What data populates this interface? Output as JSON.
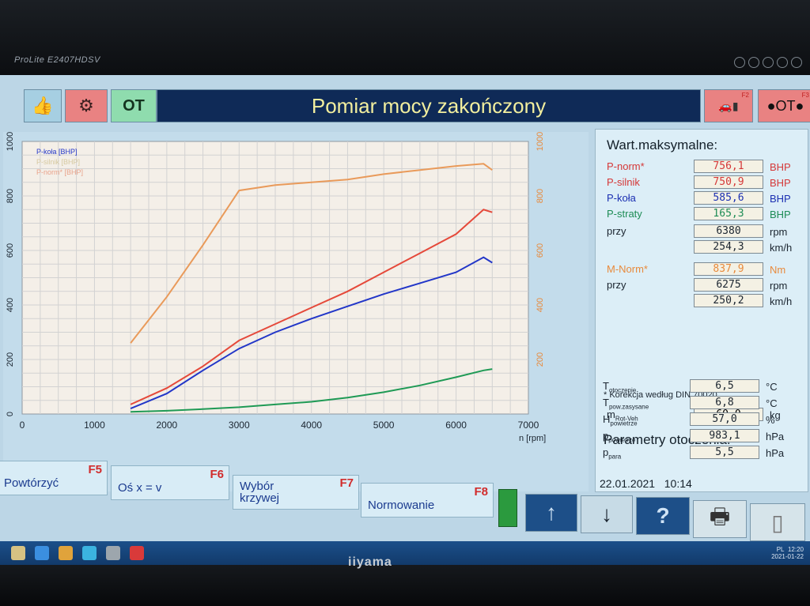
{
  "monitor": {
    "model": "ProLite E2407HDSV",
    "brand": "iiyama"
  },
  "topbar": {
    "thumb_icon": "thumbs-up-icon",
    "engine_icon": "engine-icon",
    "ot_label": "OT",
    "title": "Pomiar mocy zakończony",
    "f2_label": "F2",
    "f3_label": "F3",
    "f3_text": "●OT●"
  },
  "chart_data": {
    "type": "line",
    "x": [
      1500,
      2000,
      2500,
      3000,
      3500,
      4000,
      4500,
      5000,
      5500,
      6000,
      6380,
      6500
    ],
    "xlabel": "n [rpm]",
    "xlim": [
      0,
      7000
    ],
    "xticks": [
      "0",
      "1000",
      "2000",
      "3000",
      "4000",
      "5000",
      "6000",
      "7000"
    ],
    "left_axis": {
      "ylim": [
        0,
        1000
      ],
      "ticks": [
        "0",
        "200",
        "400",
        "600",
        "800",
        "1000"
      ]
    },
    "right_axis": {
      "ylim": [
        0,
        1000
      ],
      "ticks": [
        "200",
        "400",
        "600",
        "800",
        "1000"
      ]
    },
    "legend": [
      "P-koła [BHP]",
      "P-silnik [BHP]",
      "P-norm* [BHP]"
    ],
    "legend_position": "top-left",
    "grid": true,
    "series": [
      {
        "name": "P-koła [BHP]",
        "color": "#2236c8",
        "values": [
          20,
          75,
          160,
          240,
          300,
          350,
          395,
          440,
          480,
          520,
          575,
          555
        ]
      },
      {
        "name": "P-silnik [BHP]",
        "color": "#e5493a",
        "values": [
          35,
          95,
          175,
          270,
          330,
          390,
          450,
          520,
          590,
          660,
          750,
          740
        ]
      },
      {
        "name": "P-norm* [BHP]",
        "color": "#e99a5a",
        "values": [
          260,
          430,
          620,
          820,
          840,
          850,
          860,
          880,
          895,
          910,
          918,
          895
        ]
      },
      {
        "name": "P-straty [BHP]",
        "color": "#1f9a55",
        "values": [
          8,
          12,
          18,
          25,
          35,
          45,
          60,
          80,
          105,
          135,
          160,
          165
        ]
      }
    ]
  },
  "maxvals": {
    "heading": "Wart.maksymalne:",
    "rows": [
      {
        "label": "P-norm*",
        "value": "756,1",
        "unit": "BHP",
        "color": "red"
      },
      {
        "label": "P-silnik",
        "value": "750,9",
        "unit": "BHP",
        "color": "red"
      },
      {
        "label": "P-koła",
        "value": "585,6",
        "unit": "BHP",
        "color": "blue"
      },
      {
        "label": "P-straty",
        "value": "165,3",
        "unit": "BHP",
        "color": "green"
      },
      {
        "label": "przy",
        "value": "6380",
        "unit": "rpm",
        "color": "dark"
      },
      {
        "label": "",
        "value": "254,3",
        "unit": "km/h",
        "color": "dark"
      },
      {
        "label": "M-Norm*",
        "value": "837,9",
        "unit": "Nm",
        "color": "orange"
      },
      {
        "label": "przy",
        "value": "6275",
        "unit": "rpm",
        "color": "dark"
      },
      {
        "label": "",
        "value": "250,2",
        "unit": "km/h",
        "color": "dark"
      }
    ],
    "note": "* Korekcja według DIN 70020",
    "mrot": {
      "label": "m",
      "sub": "Rot-Veh",
      "value": "60,0",
      "unit": "kg"
    }
  },
  "env": {
    "heading": "Parametry otoczenia:",
    "rows": [
      {
        "label": "T",
        "sub": "otoczenie",
        "value": "6,5",
        "unit": "°C"
      },
      {
        "label": "T",
        "sub": "pow.zasysane",
        "value": "6,8",
        "unit": "°C"
      },
      {
        "label": "H",
        "sub": "powietrze",
        "value": "57,0",
        "unit": "%"
      },
      {
        "label": "p",
        "sub": "powietrze",
        "value": "983,1",
        "unit": "hPa"
      },
      {
        "label": "p",
        "sub": "para",
        "value": "5,5",
        "unit": "hPa"
      }
    ]
  },
  "datetime": {
    "date": "22.01.2021",
    "time": "10:14"
  },
  "fkeys": [
    {
      "text": "Powtórzyć",
      "key": "F5"
    },
    {
      "text": "Oś x = v",
      "key": "F6"
    },
    {
      "text": "Wybór krzywej",
      "key": "F7"
    },
    {
      "text": "Normowanie",
      "key": "F8"
    }
  ],
  "nav": {
    "up": "↑",
    "down": "↓",
    "help": "?",
    "print_icon": "printer-icon",
    "doc_icon": "document-icon"
  },
  "taskbar": {
    "lang": "PL",
    "clock_time": "12:20",
    "clock_date": "2021-01-22"
  }
}
